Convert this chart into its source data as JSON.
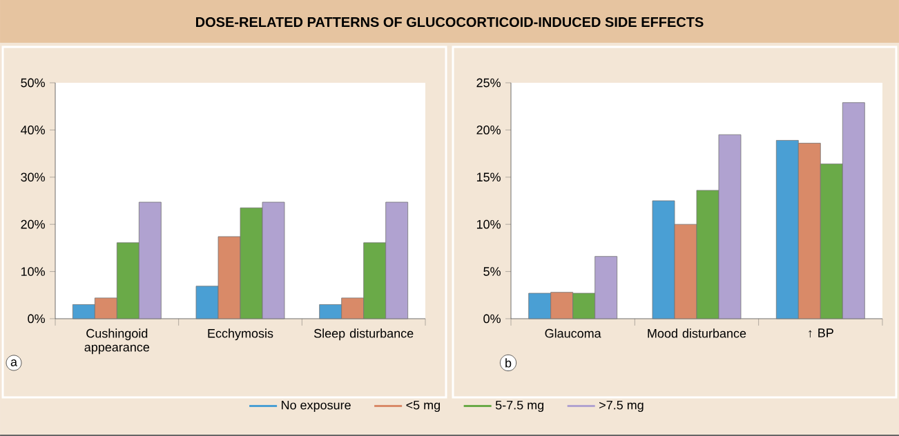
{
  "chart_data": [
    {
      "type": "bar",
      "title": "DOSE-RELATED PATTERNS OF GLUCOCORTICOID-INDUCED SIDE EFFECTS",
      "categories": [
        "Cushingoid appearance",
        "Ecchymosis",
        "Sleep disturbance"
      ],
      "series": [
        {
          "name": "No exposure",
          "color": "#4a9fd4",
          "values": [
            3.0,
            6.9,
            3.0
          ]
        },
        {
          "name": "<5 mg",
          "color": "#d98a68",
          "values": [
            4.4,
            17.4,
            4.4
          ]
        },
        {
          "name": "5-7.5 mg",
          "color": "#6aaa48",
          "values": [
            16.1,
            23.5,
            16.1
          ]
        },
        {
          "name": ">7.5 mg",
          "color": "#b0a2d0",
          "values": [
            24.7,
            24.7,
            24.7
          ]
        }
      ],
      "ylim": [
        0,
        50
      ],
      "yticks": [
        {
          "value": 0,
          "label": "0%"
        },
        {
          "value": 10,
          "label": "10%"
        },
        {
          "value": 20,
          "label": "20%"
        },
        {
          "value": 30,
          "label": "30%"
        },
        {
          "value": 40,
          "label": "40%"
        },
        {
          "value": 50,
          "label": "50%"
        }
      ],
      "legend": "bottom",
      "annotations": [
        "a"
      ]
    },
    {
      "type": "bar",
      "categories": [
        "Glaucoma",
        "Mood disturbance",
        "↑ BP"
      ],
      "series": [
        {
          "color": "#4a9fd4",
          "values": [
            2.7,
            12.5,
            18.9
          ]
        },
        {
          "color": "#d98a68",
          "values": [
            2.8,
            10.0,
            18.6
          ]
        },
        {
          "color": "#6aaa48",
          "values": [
            2.7,
            13.6,
            16.4
          ]
        },
        {
          "color": "#b0a2d0",
          "values": [
            6.6,
            19.5,
            22.9
          ]
        }
      ],
      "ylim": [
        0,
        25
      ],
      "yticks": [
        {
          "value": 0,
          "label": "0%"
        },
        {
          "value": 5,
          "label": "5%"
        },
        {
          "value": 10,
          "label": "10%"
        },
        {
          "value": 15,
          "label": "15%"
        },
        {
          "value": 20,
          "label": "20%"
        },
        {
          "value": 25,
          "label": "25%"
        }
      ],
      "annotations": [
        "b"
      ]
    }
  ]
}
